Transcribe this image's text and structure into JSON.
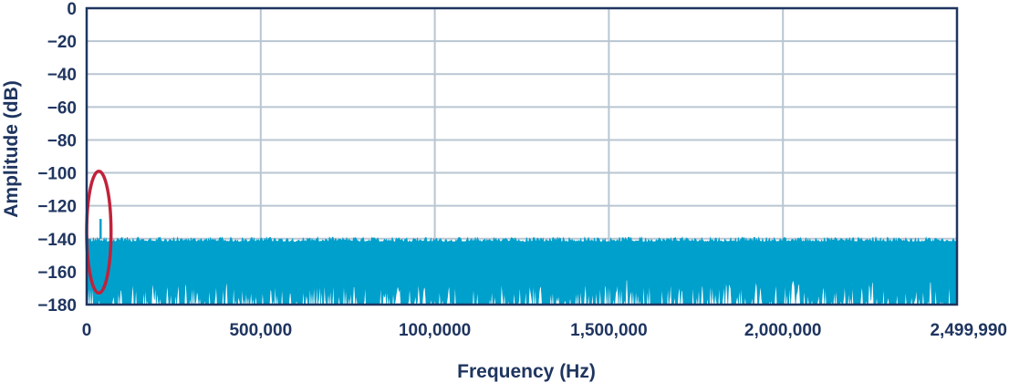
{
  "chart_data": {
    "type": "area",
    "title": "",
    "xlabel": "Frequency (Hz)",
    "ylabel": "Amplitude (dB)",
    "xlim": [
      0,
      2499990
    ],
    "ylim": [
      -180,
      0
    ],
    "x_ticks": [
      {
        "value": 0,
        "label": "0"
      },
      {
        "value": 500000,
        "label": "500,000"
      },
      {
        "value": 1000000,
        "label": "100,0000"
      },
      {
        "value": 1500000,
        "label": "1,500,000"
      },
      {
        "value": 2000000,
        "label": "2,000,000"
      },
      {
        "value": 2499990,
        "label": "2,499,990"
      }
    ],
    "y_ticks": [
      {
        "value": 0,
        "label": "0"
      },
      {
        "value": -20,
        "label": "−20"
      },
      {
        "value": -40,
        "label": "−40"
      },
      {
        "value": -60,
        "label": "−60"
      },
      {
        "value": -80,
        "label": "−80"
      },
      {
        "value": -100,
        "label": "−100"
      },
      {
        "value": -120,
        "label": "−120"
      },
      {
        "value": -140,
        "label": "−140"
      },
      {
        "value": -160,
        "label": "−160"
      },
      {
        "value": -180,
        "label": "−180"
      }
    ],
    "grid": true,
    "series": [
      {
        "color": "#00a0cc",
        "noise_floor_top_db": [
          -142,
          -139
        ],
        "noise_floor_bottom_db": [
          -180,
          -165
        ],
        "spur": {
          "x": 40000,
          "y": -128
        }
      }
    ],
    "annotations": [
      {
        "type": "ellipse",
        "color": "#c0223b",
        "x_center": 35000,
        "x_halfwidth": 35000,
        "y_top": -99,
        "y_bottom": -173
      }
    ],
    "colors": {
      "grid": "#b9c6d2",
      "axis": "#1f3560",
      "text": "#1f3560"
    }
  }
}
